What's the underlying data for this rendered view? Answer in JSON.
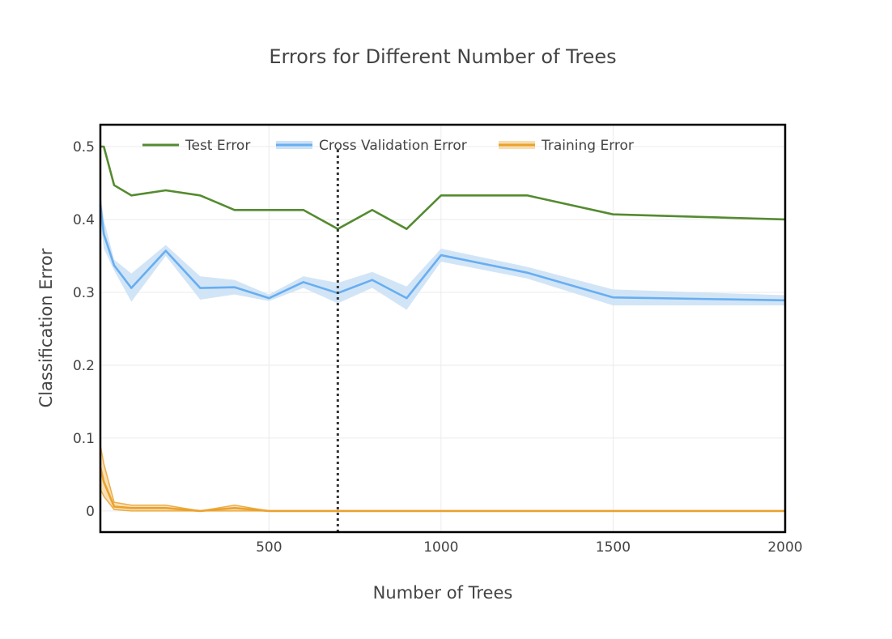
{
  "chart_data": {
    "type": "line",
    "title": "Errors for Different Number of Trees",
    "xlabel": "Number of Trees",
    "ylabel": "Classification Error",
    "xlim": [
      10,
      2000
    ],
    "ylim": [
      -0.029,
      0.53
    ],
    "x_ticks": [
      500,
      1000,
      1500,
      2000
    ],
    "y_ticks": [
      0,
      0.1,
      0.2,
      0.3,
      0.4,
      0.5
    ],
    "y_tick_labels": [
      "0",
      "0.1",
      "0.2",
      "0.3",
      "0.4",
      "0.5"
    ],
    "x_tick_labels": [
      "500",
      "1000",
      "1500",
      "2000"
    ],
    "grid": true,
    "legend_position": "top-left",
    "reference_line": {
      "x": 700,
      "style": "dotted",
      "color": "#333333"
    },
    "x": [
      10,
      20,
      50,
      100,
      200,
      300,
      400,
      500,
      600,
      700,
      800,
      900,
      1000,
      1250,
      1500,
      2000
    ],
    "series": [
      {
        "name": "Test Error",
        "color": "#548b30",
        "values": [
          0.5,
          0.5,
          0.447,
          0.433,
          0.44,
          0.433,
          0.413,
          0.413,
          0.413,
          0.387,
          0.413,
          0.387,
          0.433,
          0.433,
          0.407,
          0.4
        ]
      },
      {
        "name": "Cross Validation Error",
        "color": "#68aef0",
        "band_color": "#cde2f6",
        "values": [
          0.42,
          0.38,
          0.337,
          0.306,
          0.357,
          0.306,
          0.307,
          0.292,
          0.314,
          0.299,
          0.317,
          0.292,
          0.351,
          0.327,
          0.293,
          0.289
        ],
        "lower": [
          0.4,
          0.36,
          0.33,
          0.287,
          0.35,
          0.29,
          0.297,
          0.288,
          0.306,
          0.285,
          0.306,
          0.276,
          0.342,
          0.319,
          0.282,
          0.282
        ],
        "upper": [
          0.44,
          0.4,
          0.345,
          0.326,
          0.365,
          0.322,
          0.317,
          0.297,
          0.322,
          0.313,
          0.328,
          0.308,
          0.36,
          0.335,
          0.304,
          0.296
        ]
      },
      {
        "name": "Training Error",
        "color": "#eaa22d",
        "band_color": "#f7ddb0",
        "values": [
          0.06,
          0.04,
          0.006,
          0.004,
          0.004,
          0.0,
          0.004,
          0.0,
          0.0,
          0.0,
          0.0,
          0.0,
          0.0,
          0.0,
          0.0,
          0.0
        ],
        "lower": [
          0.03,
          0.02,
          0.002,
          0.0,
          0.0,
          0.0,
          0.0,
          0.0,
          0.0,
          0.0,
          0.0,
          0.0,
          0.0,
          0.0,
          0.0,
          0.0
        ],
        "upper": [
          0.09,
          0.065,
          0.012,
          0.008,
          0.008,
          0.0,
          0.008,
          0.0,
          0.0,
          0.0,
          0.0,
          0.0,
          0.0,
          0.0,
          0.0,
          0.0
        ]
      }
    ]
  }
}
